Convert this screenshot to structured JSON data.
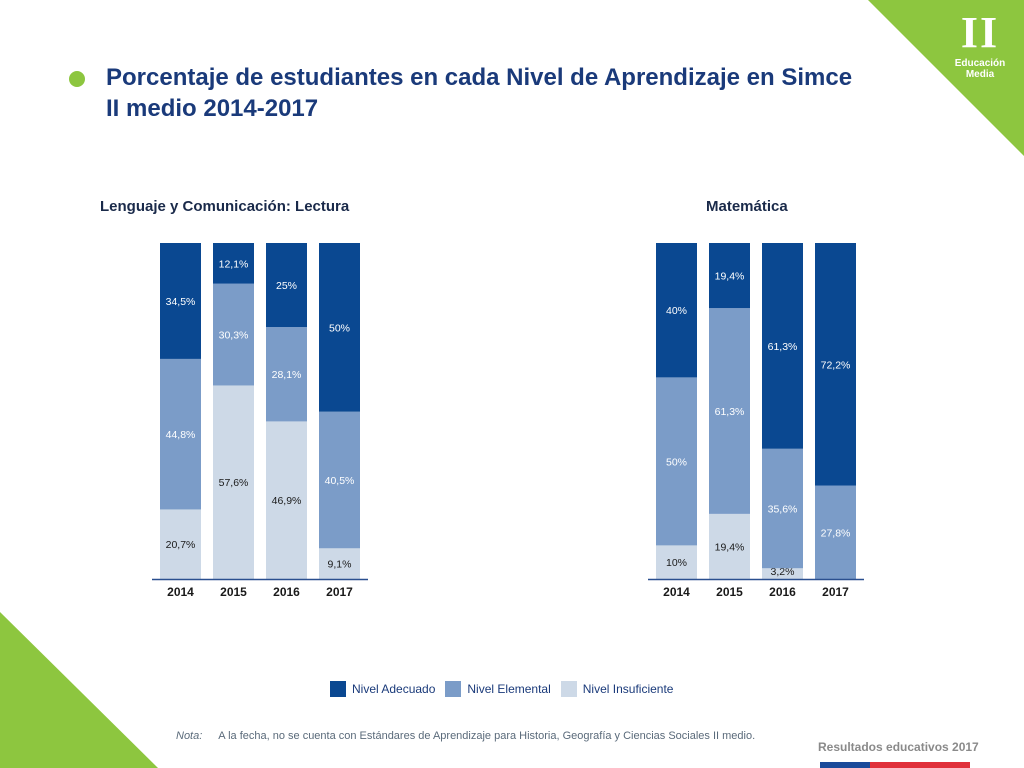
{
  "title": "Porcentaje de estudiantes en cada Nivel de Aprendizaje en Simce II medio 2014-2017",
  "corner": {
    "number": "II",
    "label": "Educación Media"
  },
  "colors": {
    "adecuado": "#0a4891",
    "elemental": "#7b9cc8",
    "insuficiente": "#cdd9e7",
    "accent_green": "#8dc63f",
    "title_blue": "#1a3a7a"
  },
  "legend": {
    "adecuado": "Nivel Adecuado",
    "elemental": "Nivel Elemental",
    "insuficiente": "Nivel Insuficiente"
  },
  "note": {
    "label": "Nota:",
    "text": "A la fecha, no se cuenta con Estándares de Aprendizaje para Historia, Geografía y Ciencias Sociales II medio."
  },
  "brand": "Resultados educativos 2017",
  "chart_data": [
    {
      "type": "bar",
      "stacked": true,
      "title": "Lenguaje y Comunicación: Lectura",
      "categories": [
        "2014",
        "2015",
        "2016",
        "2017"
      ],
      "ylim": [
        0,
        100
      ],
      "series": [
        {
          "name": "Nivel Insuficiente",
          "values": [
            20.7,
            57.6,
            46.9,
            9.1
          ],
          "labels": [
            "20,7%",
            "57,6%",
            "46,9%",
            "9,1%"
          ]
        },
        {
          "name": "Nivel Elemental",
          "values": [
            44.8,
            30.3,
            28.1,
            40.5
          ],
          "labels": [
            "44,8%",
            "30,3%",
            "28,1%",
            "40,5%"
          ]
        },
        {
          "name": "Nivel Adecuado",
          "values": [
            34.5,
            12.1,
            25,
            50
          ],
          "labels": [
            "34,5%",
            "12,1%",
            "25%",
            "50%"
          ]
        }
      ]
    },
    {
      "type": "bar",
      "stacked": true,
      "title": "Matemática",
      "categories": [
        "2014",
        "2015",
        "2016",
        "2017"
      ],
      "ylim": [
        0,
        100
      ],
      "series": [
        {
          "name": "Nivel Insuficiente",
          "values": [
            10,
            19.4,
            3.2,
            0
          ],
          "labels": [
            "10%",
            "19,4%",
            "3,2%",
            ""
          ]
        },
        {
          "name": "Nivel Elemental",
          "values": [
            50,
            61.3,
            35.6,
            27.8
          ],
          "labels": [
            "50%",
            "61,3%",
            "35,6%",
            "27,8%"
          ]
        },
        {
          "name": "Nivel Adecuado",
          "values": [
            40,
            19.4,
            61.3,
            72.2
          ],
          "labels": [
            "40%",
            "19,4%",
            "61,3%",
            "72,2%"
          ]
        }
      ]
    }
  ]
}
